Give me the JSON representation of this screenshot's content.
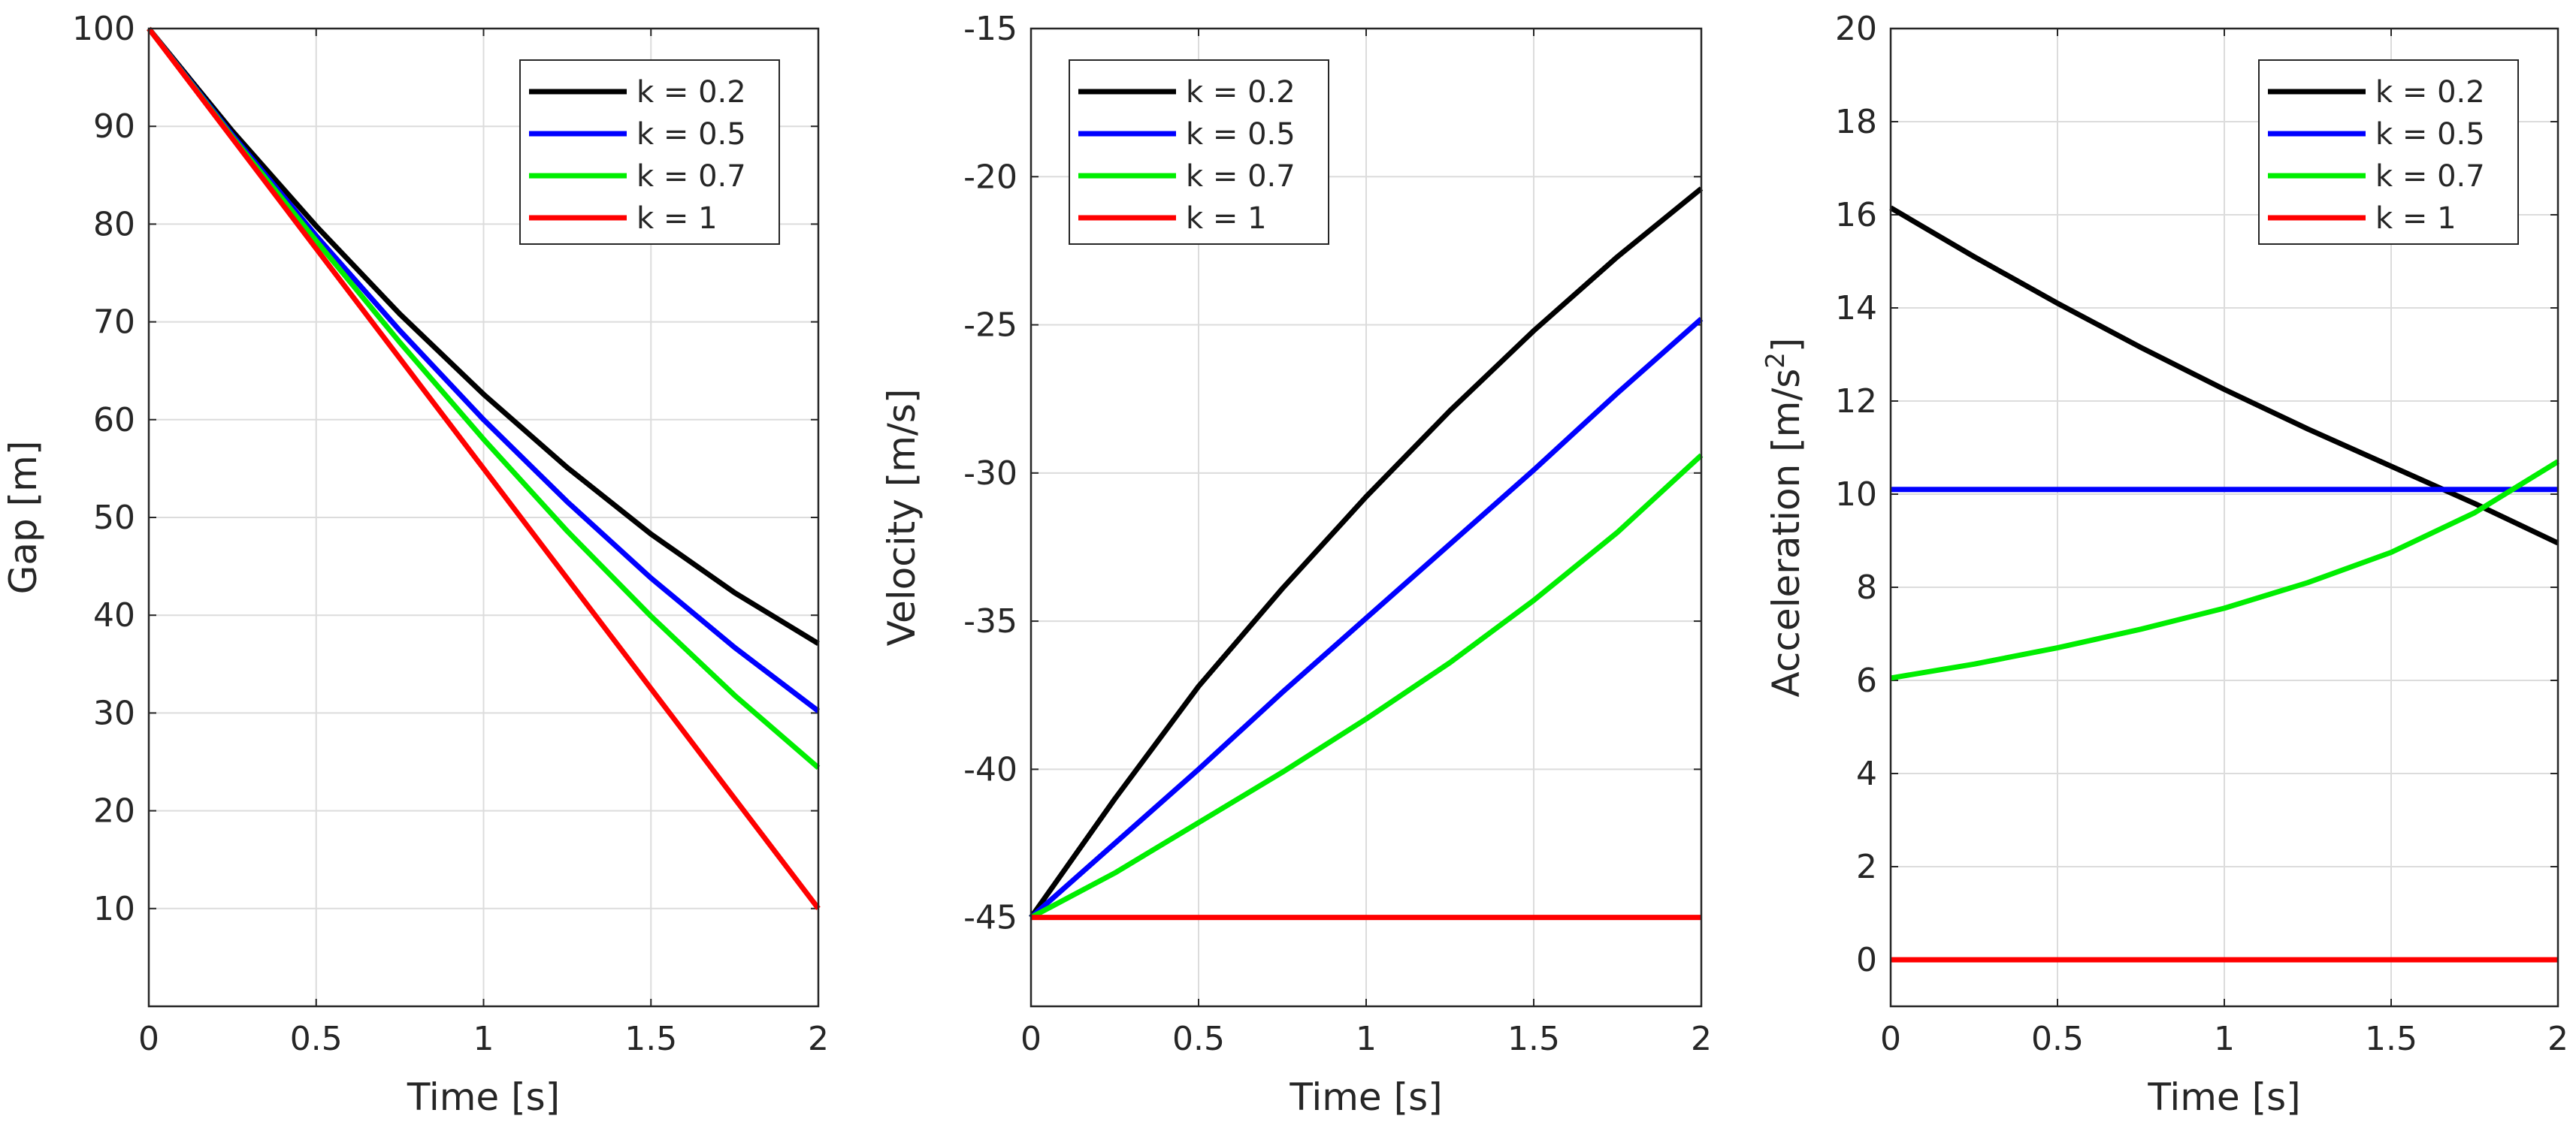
{
  "chart_data": [
    {
      "type": "line",
      "title": "",
      "xlabel": "Time [s]",
      "ylabel": "Gap [m]",
      "xlim": [
        0,
        2
      ],
      "ylim": [
        0,
        100
      ],
      "xticks": [
        0,
        0.5,
        1,
        1.5,
        2
      ],
      "xticklabels": [
        "0",
        "0.5",
        "1",
        "1.5",
        "2"
      ],
      "yticks": [
        10,
        20,
        30,
        40,
        50,
        60,
        70,
        80,
        90,
        100
      ],
      "yticklabels": [
        "10",
        "20",
        "30",
        "40",
        "50",
        "60",
        "70",
        "80",
        "90",
        "100"
      ],
      "grid": true,
      "legend_position": "top-right",
      "x": [
        0,
        0.25,
        0.5,
        0.75,
        1,
        1.25,
        1.5,
        1.75,
        2
      ],
      "series": [
        {
          "name": "k = 0.2",
          "color": "#000000",
          "values": [
            100,
            89.5,
            79.8,
            70.8,
            62.6,
            55.1,
            48.3,
            42.3,
            37.1
          ]
        },
        {
          "name": "k = 0.5",
          "color": "#0000ff",
          "values": [
            100,
            89.1,
            78.8,
            69.1,
            60.0,
            51.6,
            43.8,
            36.7,
            30.2
          ]
        },
        {
          "name": "k = 0.7",
          "color": "#00ee00",
          "values": [
            100,
            88.9,
            78.3,
            67.9,
            58.0,
            48.6,
            39.9,
            31.8,
            24.4
          ]
        },
        {
          "name": "k = 1",
          "color": "#ff0000",
          "values": [
            100,
            88.75,
            77.5,
            66.25,
            55,
            43.75,
            32.5,
            21.25,
            10
          ]
        }
      ]
    },
    {
      "type": "line",
      "title": "",
      "xlabel": "Time [s]",
      "ylabel": "Velocity [m/s]",
      "xlim": [
        0,
        2
      ],
      "ylim": [
        -48,
        -15
      ],
      "xticks": [
        0,
        0.5,
        1,
        1.5,
        2
      ],
      "xticklabels": [
        "0",
        "0.5",
        "1",
        "1.5",
        "2"
      ],
      "yticks": [
        -45,
        -40,
        -35,
        -30,
        -25,
        -20,
        -15
      ],
      "yticklabels": [
        "-45",
        "-40",
        "-35",
        "-30",
        "-25",
        "-20",
        "-15"
      ],
      "grid": true,
      "legend_position": "top-left",
      "x": [
        0,
        0.25,
        0.5,
        0.75,
        1,
        1.25,
        1.5,
        1.75,
        2
      ],
      "series": [
        {
          "name": "k = 0.2",
          "color": "#000000",
          "values": [
            -45,
            -41.0,
            -37.2,
            -33.9,
            -30.8,
            -27.9,
            -25.2,
            -22.7,
            -20.4
          ]
        },
        {
          "name": "k = 0.5",
          "color": "#0000ff",
          "values": [
            -45,
            -42.5,
            -40.0,
            -37.4,
            -34.9,
            -32.4,
            -29.9,
            -27.3,
            -24.8
          ]
        },
        {
          "name": "k = 0.7",
          "color": "#00ee00",
          "values": [
            -45,
            -43.5,
            -41.8,
            -40.1,
            -38.3,
            -36.4,
            -34.3,
            -32.0,
            -29.4
          ]
        },
        {
          "name": "k = 1",
          "color": "#ff0000",
          "values": [
            -45,
            -45,
            -45,
            -45,
            -45,
            -45,
            -45,
            -45,
            -45
          ]
        }
      ]
    },
    {
      "type": "line",
      "title": "",
      "xlabel": "Time [s]",
      "ylabel": "Acceleration [m/s",
      "ylabel_superscript": "2",
      "ylabel_suffix": "]",
      "xlim": [
        0,
        2
      ],
      "ylim": [
        -1,
        20
      ],
      "xticks": [
        0,
        0.5,
        1,
        1.5,
        2
      ],
      "xticklabels": [
        "0",
        "0.5",
        "1",
        "1.5",
        "2"
      ],
      "yticks": [
        0,
        2,
        4,
        6,
        8,
        10,
        12,
        14,
        16,
        18,
        20
      ],
      "yticklabels": [
        "0",
        "2",
        "4",
        "6",
        "8",
        "10",
        "12",
        "14",
        "16",
        "18",
        "20"
      ],
      "grid": true,
      "legend_position": "top-right",
      "x": [
        0,
        0.25,
        0.5,
        0.75,
        1,
        1.25,
        1.5,
        1.75,
        2
      ],
      "series": [
        {
          "name": "k = 0.2",
          "color": "#000000",
          "values": [
            16.15,
            15.1,
            14.1,
            13.15,
            12.25,
            11.4,
            10.6,
            9.8,
            8.95
          ]
        },
        {
          "name": "k = 0.5",
          "color": "#0000ff",
          "values": [
            10.1,
            10.1,
            10.1,
            10.1,
            10.1,
            10.1,
            10.1,
            10.1,
            10.1
          ]
        },
        {
          "name": "k = 0.7",
          "color": "#00ee00",
          "values": [
            6.05,
            6.35,
            6.7,
            7.1,
            7.55,
            8.1,
            8.75,
            9.6,
            10.7
          ]
        },
        {
          "name": "k = 1",
          "color": "#ff0000",
          "values": [
            0,
            0,
            0,
            0,
            0,
            0,
            0,
            0,
            0
          ]
        }
      ]
    }
  ]
}
